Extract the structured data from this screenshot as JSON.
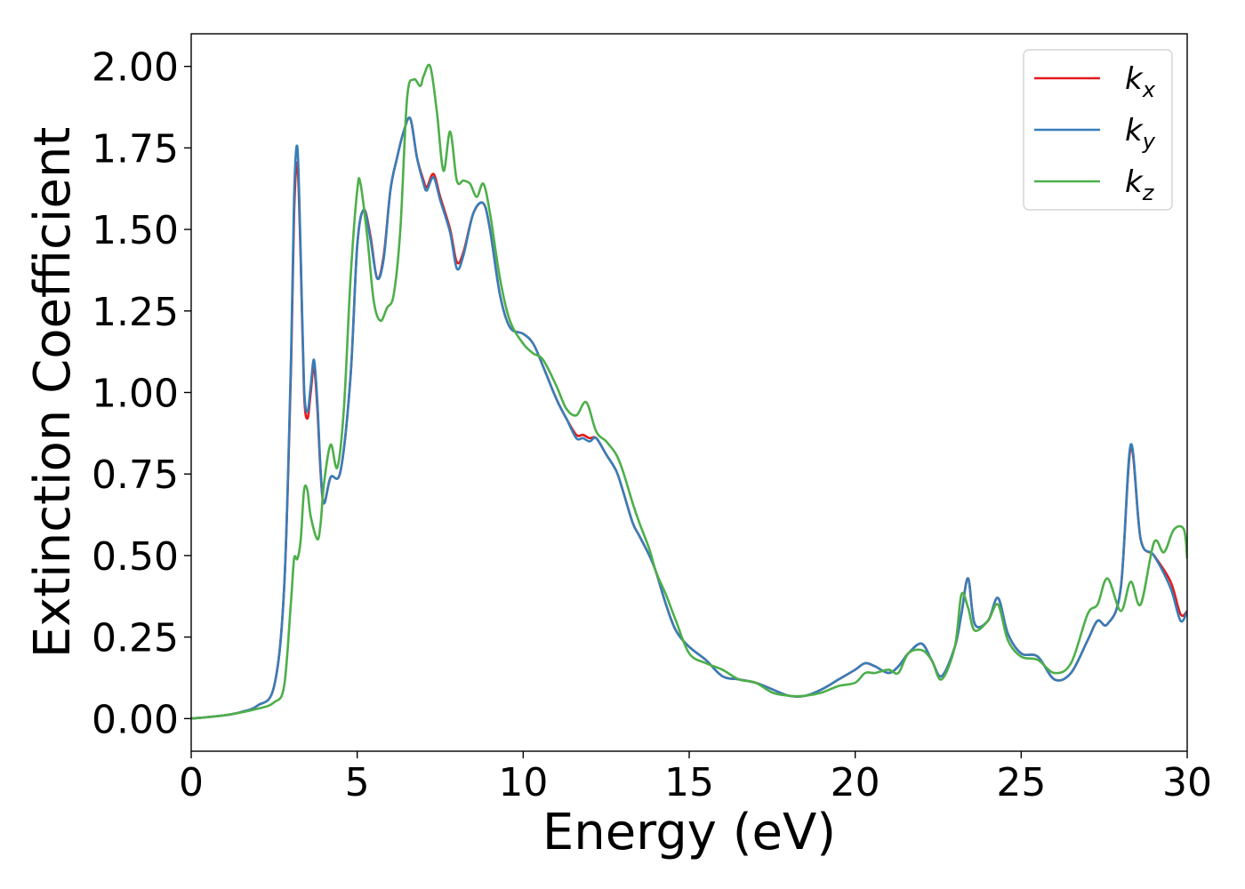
{
  "chart_data": {
    "type": "line",
    "title": "",
    "xlabel": "Energy (eV)",
    "ylabel": "Extinction Coefficient",
    "xlim": [
      0,
      30
    ],
    "ylim": [
      -0.1,
      2.1
    ],
    "xticks": [
      0,
      5,
      10,
      15,
      20,
      25,
      30
    ],
    "xtick_labels": [
      "0",
      "5",
      "10",
      "15",
      "20",
      "25",
      "30"
    ],
    "yticks": [
      0.0,
      0.25,
      0.5,
      0.75,
      1.0,
      1.25,
      1.5,
      1.75,
      2.0
    ],
    "ytick_labels": [
      "0.00",
      "0.25",
      "0.50",
      "0.75",
      "1.00",
      "1.25",
      "1.50",
      "1.75",
      "2.00"
    ],
    "grid": false,
    "legend_position": "top-right",
    "series": [
      {
        "name": "kx",
        "label_main": "k",
        "label_sub": "x",
        "color": "#e41a1c",
        "x": [
          0,
          1,
          1.5,
          2,
          2.5,
          2.8,
          3.0,
          3.1,
          3.2,
          3.3,
          3.4,
          3.5,
          3.6,
          3.7,
          3.8,
          3.9,
          4.0,
          4.2,
          4.5,
          4.8,
          5.0,
          5.2,
          5.4,
          5.6,
          5.8,
          6.0,
          6.2,
          6.4,
          6.6,
          6.8,
          7.0,
          7.1,
          7.3,
          7.5,
          7.8,
          8.0,
          8.2,
          8.5,
          8.8,
          9.0,
          9.3,
          9.6,
          10.0,
          10.3,
          10.6,
          11.0,
          11.3,
          11.6,
          11.8,
          12.0,
          12.2,
          12.5,
          12.8,
          13.0,
          13.3,
          13.5,
          13.8,
          14.0,
          14.3,
          14.6,
          15.0,
          15.5,
          16.0,
          16.5,
          17.0,
          17.5,
          18.0,
          18.5,
          19.0,
          19.5,
          20.0,
          20.3,
          20.6,
          21.0,
          21.3,
          21.6,
          22.0,
          22.3,
          22.6,
          23.0,
          23.2,
          23.4,
          23.6,
          24.0,
          24.3,
          24.6,
          25.0,
          25.5,
          26.0,
          26.5,
          27.0,
          27.3,
          27.6,
          28.0,
          28.3,
          28.6,
          29.0,
          29.5,
          29.8,
          30.0
        ],
        "y": [
          0.0,
          0.01,
          0.02,
          0.04,
          0.1,
          0.4,
          1.05,
          1.55,
          1.7,
          1.4,
          1.0,
          0.92,
          1.0,
          1.08,
          0.95,
          0.75,
          0.66,
          0.74,
          0.76,
          1.05,
          1.45,
          1.56,
          1.48,
          1.35,
          1.42,
          1.62,
          1.72,
          1.8,
          1.84,
          1.72,
          1.65,
          1.63,
          1.67,
          1.6,
          1.5,
          1.4,
          1.43,
          1.55,
          1.58,
          1.5,
          1.3,
          1.2,
          1.18,
          1.15,
          1.08,
          0.98,
          0.92,
          0.87,
          0.87,
          0.86,
          0.86,
          0.81,
          0.76,
          0.7,
          0.6,
          0.56,
          0.5,
          0.45,
          0.35,
          0.27,
          0.22,
          0.18,
          0.13,
          0.12,
          0.11,
          0.09,
          0.07,
          0.07,
          0.09,
          0.12,
          0.15,
          0.17,
          0.16,
          0.14,
          0.16,
          0.2,
          0.23,
          0.18,
          0.13,
          0.22,
          0.32,
          0.43,
          0.29,
          0.3,
          0.37,
          0.26,
          0.2,
          0.19,
          0.12,
          0.14,
          0.24,
          0.3,
          0.29,
          0.4,
          0.83,
          0.55,
          0.5,
          0.42,
          0.32,
          0.33
        ]
      },
      {
        "name": "ky",
        "label_main": "k",
        "label_sub": "y",
        "color": "#377eb8",
        "x": [
          0,
          1,
          1.5,
          2,
          2.5,
          2.8,
          3.0,
          3.1,
          3.2,
          3.3,
          3.4,
          3.5,
          3.6,
          3.7,
          3.8,
          3.9,
          4.0,
          4.2,
          4.5,
          4.8,
          5.0,
          5.2,
          5.4,
          5.6,
          5.8,
          6.0,
          6.2,
          6.4,
          6.6,
          6.8,
          7.0,
          7.1,
          7.3,
          7.5,
          7.8,
          8.0,
          8.2,
          8.5,
          8.8,
          9.0,
          9.3,
          9.6,
          10.0,
          10.3,
          10.6,
          11.0,
          11.3,
          11.6,
          11.8,
          12.0,
          12.2,
          12.5,
          12.8,
          13.0,
          13.3,
          13.5,
          13.8,
          14.0,
          14.3,
          14.6,
          15.0,
          15.5,
          16.0,
          16.5,
          17.0,
          17.5,
          18.0,
          18.5,
          19.0,
          19.5,
          20.0,
          20.3,
          20.6,
          21.0,
          21.3,
          21.6,
          22.0,
          22.3,
          22.6,
          23.0,
          23.2,
          23.4,
          23.6,
          24.0,
          24.3,
          24.6,
          25.0,
          25.5,
          26.0,
          26.5,
          27.0,
          27.3,
          27.6,
          28.0,
          28.3,
          28.6,
          29.0,
          29.5,
          29.8,
          30.0
        ],
        "y": [
          0.0,
          0.01,
          0.02,
          0.04,
          0.1,
          0.4,
          1.08,
          1.6,
          1.75,
          1.42,
          1.02,
          0.94,
          1.02,
          1.1,
          0.97,
          0.76,
          0.66,
          0.74,
          0.76,
          1.05,
          1.45,
          1.56,
          1.47,
          1.35,
          1.41,
          1.62,
          1.72,
          1.8,
          1.84,
          1.72,
          1.64,
          1.62,
          1.66,
          1.59,
          1.49,
          1.38,
          1.42,
          1.55,
          1.58,
          1.5,
          1.3,
          1.2,
          1.18,
          1.15,
          1.08,
          0.98,
          0.92,
          0.86,
          0.86,
          0.85,
          0.86,
          0.81,
          0.76,
          0.7,
          0.6,
          0.56,
          0.5,
          0.45,
          0.35,
          0.27,
          0.22,
          0.18,
          0.13,
          0.12,
          0.11,
          0.09,
          0.07,
          0.07,
          0.09,
          0.12,
          0.15,
          0.17,
          0.16,
          0.14,
          0.16,
          0.2,
          0.23,
          0.18,
          0.13,
          0.22,
          0.32,
          0.43,
          0.29,
          0.3,
          0.37,
          0.26,
          0.2,
          0.19,
          0.12,
          0.14,
          0.24,
          0.3,
          0.29,
          0.4,
          0.84,
          0.55,
          0.5,
          0.4,
          0.3,
          0.33
        ]
      },
      {
        "name": "kz",
        "label_main": "k",
        "label_sub": "z",
        "color": "#4daf4a",
        "x": [
          0,
          1,
          2,
          2.5,
          2.8,
          3.0,
          3.1,
          3.2,
          3.3,
          3.4,
          3.5,
          3.6,
          3.8,
          3.9,
          4.0,
          4.2,
          4.4,
          4.6,
          4.8,
          5.0,
          5.1,
          5.3,
          5.5,
          5.7,
          5.9,
          6.1,
          6.3,
          6.5,
          6.7,
          6.9,
          7.0,
          7.2,
          7.4,
          7.6,
          7.8,
          8.0,
          8.2,
          8.4,
          8.6,
          8.8,
          9.0,
          9.3,
          9.6,
          10.0,
          10.3,
          10.6,
          11.0,
          11.3,
          11.6,
          11.9,
          12.2,
          12.5,
          12.8,
          13.0,
          13.3,
          13.5,
          13.8,
          14.0,
          14.3,
          14.6,
          15.0,
          15.5,
          16.0,
          16.5,
          17.0,
          17.5,
          18.0,
          18.5,
          19.0,
          19.5,
          20.0,
          20.3,
          20.6,
          21.0,
          21.3,
          21.6,
          22.0,
          22.3,
          22.6,
          23.0,
          23.2,
          23.4,
          23.6,
          24.0,
          24.3,
          24.6,
          25.0,
          25.5,
          26.0,
          26.5,
          27.0,
          27.3,
          27.6,
          28.0,
          28.3,
          28.6,
          29.0,
          29.3,
          29.6,
          29.9,
          30.0
        ],
        "y": [
          0.0,
          0.01,
          0.03,
          0.05,
          0.1,
          0.35,
          0.49,
          0.49,
          0.55,
          0.7,
          0.7,
          0.62,
          0.55,
          0.6,
          0.72,
          0.84,
          0.77,
          0.95,
          1.35,
          1.62,
          1.64,
          1.48,
          1.28,
          1.22,
          1.26,
          1.3,
          1.5,
          1.9,
          1.96,
          1.94,
          1.97,
          2.0,
          1.86,
          1.68,
          1.8,
          1.65,
          1.65,
          1.64,
          1.6,
          1.64,
          1.55,
          1.35,
          1.22,
          1.15,
          1.12,
          1.1,
          1.02,
          0.95,
          0.93,
          0.97,
          0.88,
          0.85,
          0.81,
          0.76,
          0.66,
          0.6,
          0.52,
          0.45,
          0.38,
          0.3,
          0.2,
          0.17,
          0.15,
          0.12,
          0.11,
          0.08,
          0.07,
          0.07,
          0.08,
          0.1,
          0.11,
          0.14,
          0.14,
          0.15,
          0.14,
          0.2,
          0.21,
          0.18,
          0.12,
          0.22,
          0.38,
          0.34,
          0.27,
          0.3,
          0.35,
          0.24,
          0.19,
          0.18,
          0.14,
          0.17,
          0.32,
          0.35,
          0.43,
          0.33,
          0.42,
          0.35,
          0.54,
          0.51,
          0.58,
          0.58,
          0.49
        ]
      }
    ]
  }
}
